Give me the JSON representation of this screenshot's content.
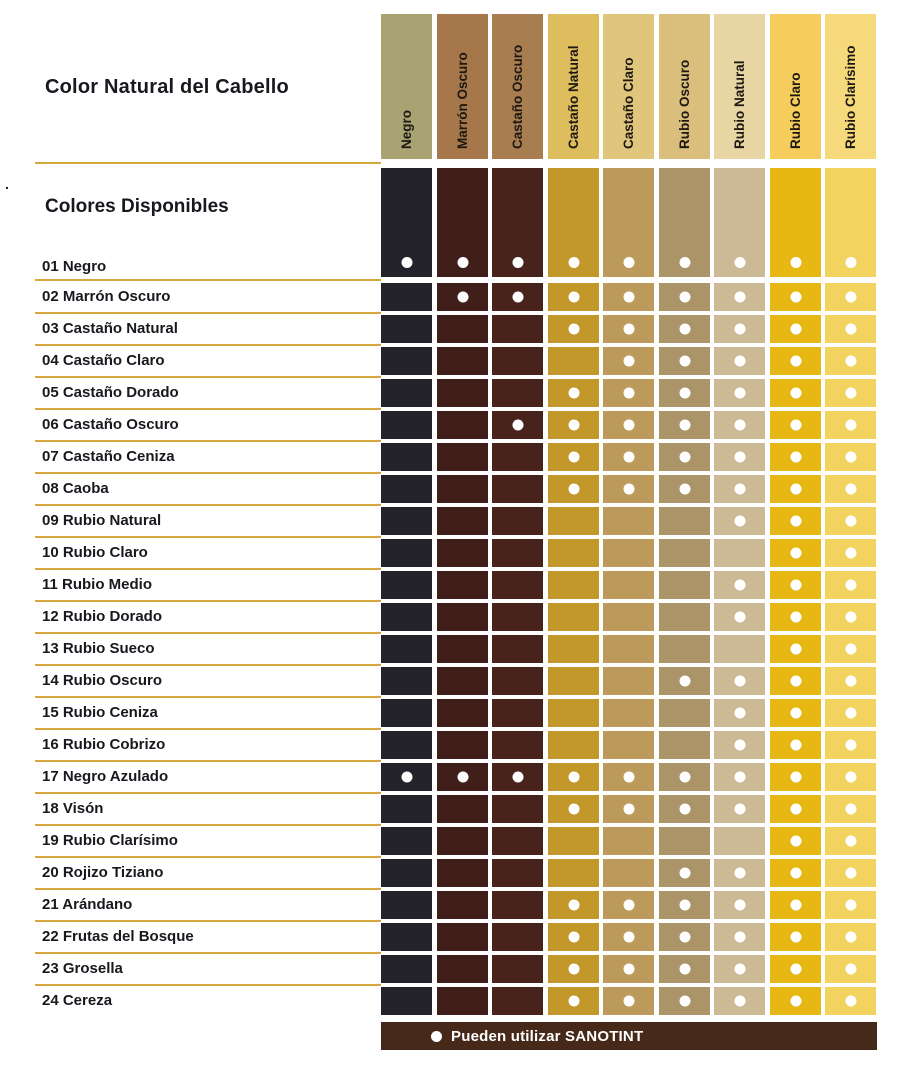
{
  "page": {
    "title": "Color Natural del Cabello",
    "section_heading": "Colores Disponibles",
    "stray_mark": "."
  },
  "legend": {
    "dot_icon": "●",
    "text": "Pueden utilizar SANOTINT"
  },
  "colors": {
    "background": "#ffffff",
    "ink": "#19181f",
    "gold_line": "#d6a93d",
    "legend_bg": "#47291a",
    "legend_text": "#ffffff",
    "dot": "#ffffff"
  },
  "chart_data": {
    "type": "table",
    "title": "Color Natural del Cabello",
    "subtitle": "Colores Disponibles",
    "legend": "● Pueden utilizar SANOTINT",
    "columns": [
      {
        "label": "Negro",
        "header_color": "#a9a273",
        "body_color": "#24222a"
      },
      {
        "label": "Marrón Oscuro",
        "header_color": "#a5774a",
        "body_color": "#401e1a"
      },
      {
        "label": "Castaño Oscuro",
        "header_color": "#a87d50",
        "body_color": "#48231c"
      },
      {
        "label": "Castaño Natural",
        "header_color": "#debd5e",
        "body_color": "#c2982a"
      },
      {
        "label": "Castaño Claro",
        "header_color": "#e0c67c",
        "body_color": "#bb9a5c"
      },
      {
        "label": "Rubio Oscuro",
        "header_color": "#d9bf7b",
        "body_color": "#ab9468"
      },
      {
        "label": "Rubio Natural",
        "header_color": "#e7d5a4",
        "body_color": "#ccb995"
      },
      {
        "label": "Rubio Claro",
        "header_color": "#f4cd5c",
        "body_color": "#e7b714"
      },
      {
        "label": "Rubio Clarísimo",
        "header_color": "#f5d97b",
        "body_color": "#f3d360"
      }
    ],
    "rows": [
      {
        "label": "01 Negro",
        "compatible": [
          1,
          1,
          1,
          1,
          1,
          1,
          1,
          1,
          1
        ]
      },
      {
        "label": "02 Marrón Oscuro",
        "compatible": [
          0,
          1,
          1,
          1,
          1,
          1,
          1,
          1,
          1
        ]
      },
      {
        "label": "03 Castaño Natural",
        "compatible": [
          0,
          0,
          0,
          1,
          1,
          1,
          1,
          1,
          1
        ]
      },
      {
        "label": "04 Castaño Claro",
        "compatible": [
          0,
          0,
          0,
          0,
          1,
          1,
          1,
          1,
          1
        ]
      },
      {
        "label": "05 Castaño Dorado",
        "compatible": [
          0,
          0,
          0,
          1,
          1,
          1,
          1,
          1,
          1
        ]
      },
      {
        "label": "06 Castaño Oscuro",
        "compatible": [
          0,
          0,
          1,
          1,
          1,
          1,
          1,
          1,
          1
        ]
      },
      {
        "label": "07 Castaño Ceniza",
        "compatible": [
          0,
          0,
          0,
          1,
          1,
          1,
          1,
          1,
          1
        ]
      },
      {
        "label": "08 Caoba",
        "compatible": [
          0,
          0,
          0,
          1,
          1,
          1,
          1,
          1,
          1
        ]
      },
      {
        "label": "09 Rubio Natural",
        "compatible": [
          0,
          0,
          0,
          0,
          0,
          0,
          1,
          1,
          1
        ]
      },
      {
        "label": "10 Rubio Claro",
        "compatible": [
          0,
          0,
          0,
          0,
          0,
          0,
          0,
          1,
          1
        ]
      },
      {
        "label": "11 Rubio Medio",
        "compatible": [
          0,
          0,
          0,
          0,
          0,
          0,
          1,
          1,
          1
        ]
      },
      {
        "label": "12 Rubio Dorado",
        "compatible": [
          0,
          0,
          0,
          0,
          0,
          0,
          1,
          1,
          1
        ]
      },
      {
        "label": "13 Rubio Sueco",
        "compatible": [
          0,
          0,
          0,
          0,
          0,
          0,
          0,
          1,
          1
        ]
      },
      {
        "label": "14 Rubio Oscuro",
        "compatible": [
          0,
          0,
          0,
          0,
          0,
          1,
          1,
          1,
          1
        ]
      },
      {
        "label": "15 Rubio Ceniza",
        "compatible": [
          0,
          0,
          0,
          0,
          0,
          0,
          1,
          1,
          1
        ]
      },
      {
        "label": "16 Rubio Cobrizo",
        "compatible": [
          0,
          0,
          0,
          0,
          0,
          0,
          1,
          1,
          1
        ]
      },
      {
        "label": "17 Negro Azulado",
        "compatible": [
          1,
          1,
          1,
          1,
          1,
          1,
          1,
          1,
          1
        ]
      },
      {
        "label": "18 Visón",
        "compatible": [
          0,
          0,
          0,
          1,
          1,
          1,
          1,
          1,
          1
        ]
      },
      {
        "label": "19 Rubio Clarísimo",
        "compatible": [
          0,
          0,
          0,
          0,
          0,
          0,
          0,
          1,
          1
        ]
      },
      {
        "label": "20 Rojizo Tiziano",
        "compatible": [
          0,
          0,
          0,
          0,
          0,
          1,
          1,
          1,
          1
        ]
      },
      {
        "label": "21 Arándano",
        "compatible": [
          0,
          0,
          0,
          1,
          1,
          1,
          1,
          1,
          1
        ]
      },
      {
        "label": "22 Frutas del Bosque",
        "compatible": [
          0,
          0,
          0,
          1,
          1,
          1,
          1,
          1,
          1
        ]
      },
      {
        "label": "23 Grosella",
        "compatible": [
          0,
          0,
          0,
          1,
          1,
          1,
          1,
          1,
          1
        ]
      },
      {
        "label": "24 Cereza",
        "compatible": [
          0,
          0,
          0,
          1,
          1,
          1,
          1,
          1,
          1
        ]
      }
    ]
  }
}
